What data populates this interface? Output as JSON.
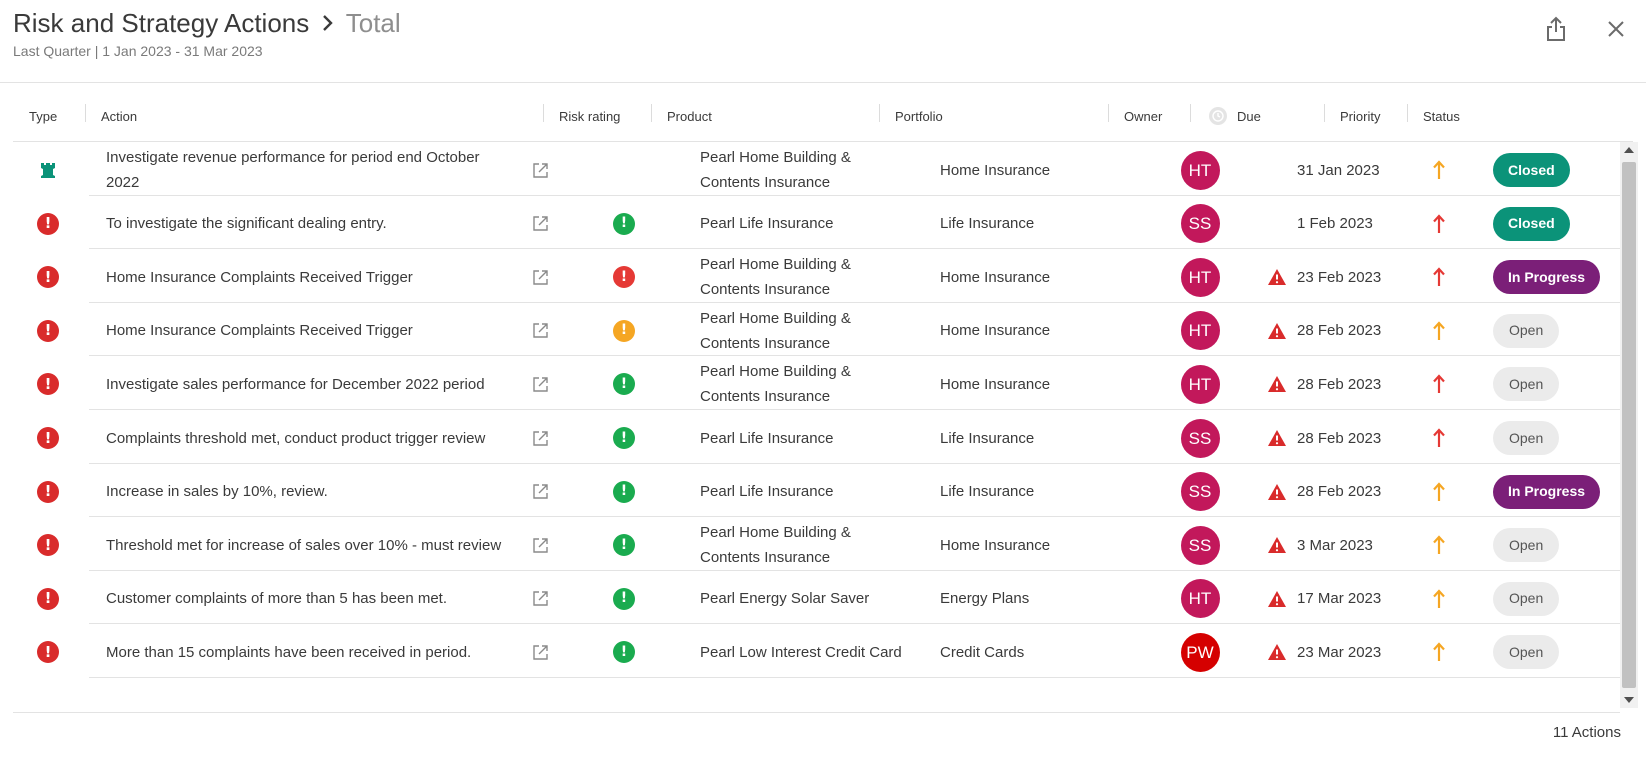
{
  "header": {
    "title": "Risk and Strategy Actions",
    "separator": "›",
    "current": "Total",
    "subtitle": "Last Quarter | 1 Jan 2023 - 31 Mar 2023",
    "share_icon": "share-icon",
    "close_icon": "close-icon"
  },
  "columns": {
    "type": "Type",
    "action": "Action",
    "risk": "Risk rating",
    "product": "Product",
    "portfolio": "Portfolio",
    "owner": "Owner",
    "due": "Due",
    "priority": "Priority",
    "status": "Status"
  },
  "colors": {
    "avatar_pink": "#c2185b",
    "avatar_red": "#d50000",
    "green": "#1aab4f",
    "red": "#e53935",
    "orange": "#f5a623",
    "closed": "#0b9379",
    "in_progress": "#7b1f78",
    "open": "#ebebeb"
  },
  "rows": [
    {
      "type": "strategy",
      "action_l1": "Investigate revenue performance for period end October",
      "action_l2": "2022",
      "risk": "",
      "product_l1": "Pearl Home Building &",
      "product_l2": "Contents Insurance",
      "portfolio": "Home Insurance",
      "owner": "HT",
      "warn": false,
      "due": "31 Jan 2023",
      "priority": "medium",
      "status": "Closed"
    },
    {
      "type": "risk",
      "action_l1": "To investigate the significant dealing entry.",
      "action_l2": "",
      "risk": "low",
      "product_l1": "Pearl Life Insurance",
      "product_l2": "",
      "portfolio": "Life Insurance",
      "owner": "SS",
      "warn": false,
      "due": "1 Feb 2023",
      "priority": "high",
      "status": "Closed"
    },
    {
      "type": "risk",
      "action_l1": "Home Insurance Complaints Received Trigger",
      "action_l2": "",
      "risk": "high",
      "product_l1": "Pearl Home Building &",
      "product_l2": "Contents Insurance",
      "portfolio": "Home Insurance",
      "owner": "HT",
      "warn": true,
      "due": "23 Feb 2023",
      "priority": "high",
      "status": "In Progress"
    },
    {
      "type": "risk",
      "action_l1": "Home Insurance Complaints Received Trigger",
      "action_l2": "",
      "risk": "medium",
      "product_l1": "Pearl Home Building &",
      "product_l2": "Contents Insurance",
      "portfolio": "Home Insurance",
      "owner": "HT",
      "warn": true,
      "due": "28 Feb 2023",
      "priority": "medium",
      "status": "Open"
    },
    {
      "type": "risk",
      "action_l1": "Investigate sales performance for December 2022 period",
      "action_l2": "",
      "risk": "low",
      "product_l1": "Pearl Home Building &",
      "product_l2": "Contents Insurance",
      "portfolio": "Home Insurance",
      "owner": "HT",
      "warn": true,
      "due": "28 Feb 2023",
      "priority": "high",
      "status": "Open"
    },
    {
      "type": "risk",
      "action_l1": "Complaints threshold met, conduct product trigger review",
      "action_l2": "",
      "risk": "low",
      "product_l1": "Pearl Life Insurance",
      "product_l2": "",
      "portfolio": "Life Insurance",
      "owner": "SS",
      "warn": true,
      "due": "28 Feb 2023",
      "priority": "high",
      "status": "Open"
    },
    {
      "type": "risk",
      "action_l1": "Increase in sales by 10%, review.",
      "action_l2": "",
      "risk": "low",
      "product_l1": "Pearl Life Insurance",
      "product_l2": "",
      "portfolio": "Life Insurance",
      "owner": "SS",
      "warn": true,
      "due": "28 Feb 2023",
      "priority": "medium",
      "status": "In Progress"
    },
    {
      "type": "risk",
      "action_l1": "Threshold met for increase of sales over 10% - must review",
      "action_l2": "",
      "risk": "low",
      "product_l1": "Pearl Home Building &",
      "product_l2": "Contents Insurance",
      "portfolio": "Home Insurance",
      "owner": "SS",
      "warn": true,
      "due": "3 Mar 2023",
      "priority": "medium",
      "status": "Open"
    },
    {
      "type": "risk",
      "action_l1": "Customer complaints of more than 5 has been met.",
      "action_l2": "",
      "risk": "low",
      "product_l1": "Pearl Energy Solar Saver",
      "product_l2": "",
      "portfolio": "Energy Plans",
      "owner": "HT",
      "warn": true,
      "due": "17 Mar 2023",
      "priority": "medium",
      "status": "Open"
    },
    {
      "type": "risk",
      "action_l1": "More than 15 complaints have been received in period.",
      "action_l2": "",
      "risk": "low",
      "product_l1": "Pearl Low Interest Credit Card",
      "product_l2": "",
      "portfolio": "Credit Cards",
      "owner": "PW",
      "warn": true,
      "due": "23 Mar 2023",
      "priority": "medium",
      "status": "Open"
    }
  ],
  "footer": {
    "count": "11 Actions"
  }
}
